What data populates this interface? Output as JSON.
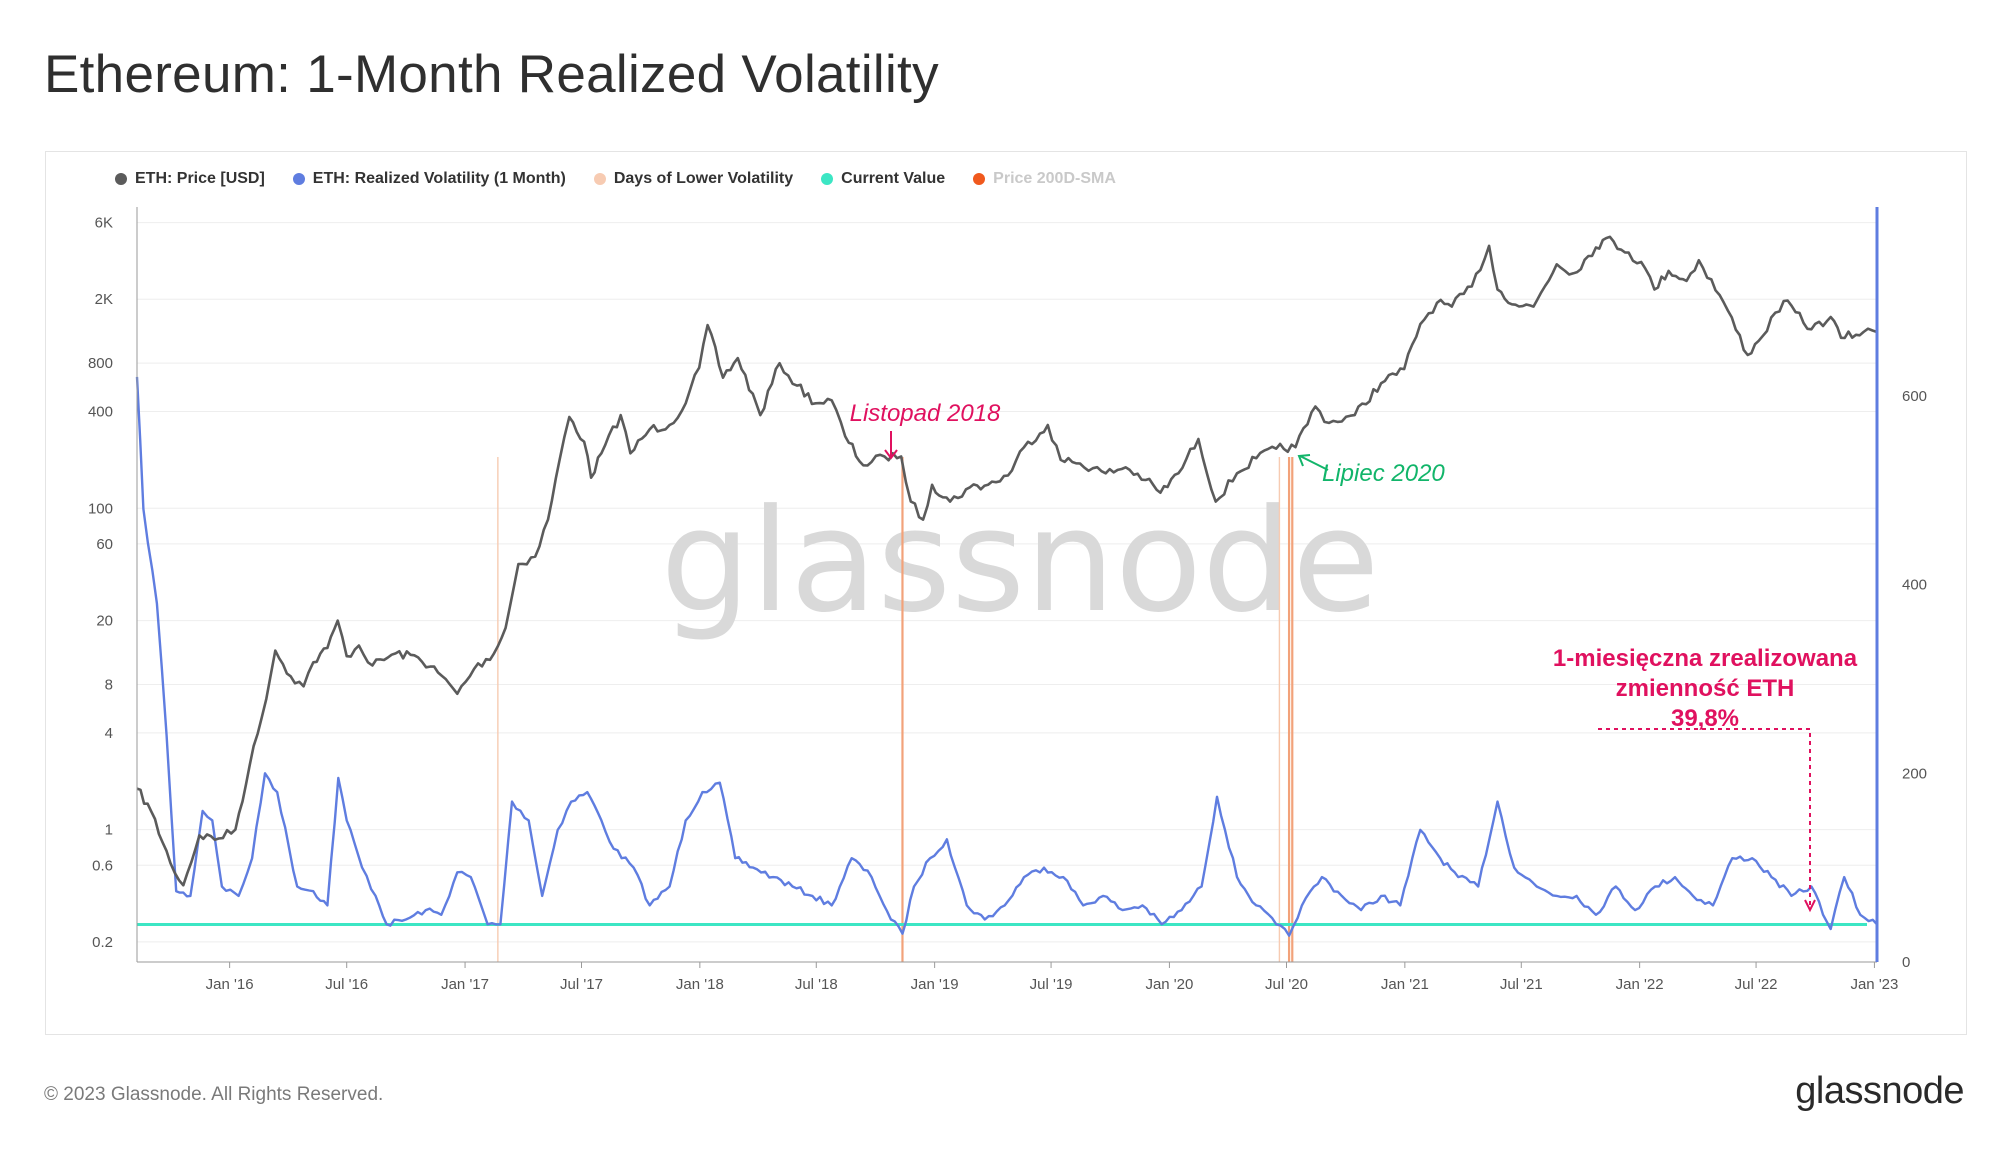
{
  "header": {
    "title": "Ethereum: 1-Month Realized Volatility"
  },
  "footer": {
    "copyright": "© 2023 Glassnode. All Rights Reserved.",
    "brand": "glassnode"
  },
  "watermark": "glassnode",
  "legend": [
    {
      "label": "ETH: Price [USD]",
      "color": "#5b5b5b",
      "muted": false
    },
    {
      "label": "ETH: Realized Volatility (1 Month)",
      "color": "#5f7de0",
      "muted": false
    },
    {
      "label": "Days of Lower Volatility",
      "color": "#f7cbb2",
      "muted": false
    },
    {
      "label": "Current Value",
      "color": "#3ce6c4",
      "muted": false
    },
    {
      "label": "Price 200D-SMA",
      "color": "#f0591d",
      "muted": true
    }
  ],
  "annotations": {
    "nov2018": {
      "text": "Listopad 2018",
      "color": "#e0115f"
    },
    "jul2020": {
      "text": "Lipiec 2020",
      "color": "#12b56a"
    },
    "current": {
      "lines": [
        "1-miesięczna zrealizowana",
        "zmienność ETH",
        "39,8%"
      ],
      "color": "#e0115f"
    }
  },
  "chart_data": {
    "type": "line",
    "x_tick_labels": [
      "Jan '16",
      "Jul '16",
      "Jan '17",
      "Jul '17",
      "Jan '18",
      "Jul '18",
      "Jan '19",
      "Jul '19",
      "Jan '20",
      "Jul '20",
      "Jan '21",
      "Jul '21",
      "Jan '22",
      "Jul '22",
      "Jan '23"
    ],
    "x_range": [
      "2015-08-10",
      "2023-01-05"
    ],
    "y_left": {
      "scale": "log",
      "ticks": [
        "6K",
        "2K",
        "800",
        "400",
        "100",
        "60",
        "20",
        "8",
        "4",
        "1",
        "0.6",
        "0.2"
      ],
      "tick_values": [
        6000,
        2000,
        800,
        400,
        100,
        60,
        20,
        8,
        4,
        1,
        0.6,
        0.2
      ],
      "range": [
        0.15,
        7500
      ]
    },
    "y_right": {
      "scale": "linear",
      "ticks": [
        "0",
        "200",
        "400",
        "600"
      ],
      "tick_values": [
        0,
        200,
        400,
        600
      ],
      "range": [
        0,
        800
      ]
    },
    "current_value": 39.8,
    "series": [
      {
        "name": "ETH: Price [USD]",
        "axis": "left",
        "color": "#5b5b5b",
        "points": [
          [
            "2015-08-10",
            1.8
          ],
          [
            "2015-09-01",
            1.3
          ],
          [
            "2015-10-01",
            0.62
          ],
          [
            "2015-10-21",
            0.45
          ],
          [
            "2015-11-15",
            0.92
          ],
          [
            "2015-12-15",
            0.88
          ],
          [
            "2016-01-10",
            1.0
          ],
          [
            "2016-02-01",
            2.5
          ],
          [
            "2016-02-20",
            5.0
          ],
          [
            "2016-03-12",
            13.0
          ],
          [
            "2016-04-05",
            9.0
          ],
          [
            "2016-04-25",
            7.8
          ],
          [
            "2016-05-10",
            11.0
          ],
          [
            "2016-06-01",
            13.5
          ],
          [
            "2016-06-17",
            20.0
          ],
          [
            "2016-07-01",
            12.0
          ],
          [
            "2016-07-20",
            14.0
          ],
          [
            "2016-08-10",
            10.5
          ],
          [
            "2016-09-15",
            12.5
          ],
          [
            "2016-10-20",
            11.8
          ],
          [
            "2016-11-20",
            9.5
          ],
          [
            "2016-12-20",
            7.0
          ],
          [
            "2017-01-15",
            10.0
          ],
          [
            "2017-02-15",
            12.5
          ],
          [
            "2017-03-05",
            18.0
          ],
          [
            "2017-03-25",
            45.0
          ],
          [
            "2017-04-20",
            50.0
          ],
          [
            "2017-05-10",
            85.0
          ],
          [
            "2017-05-28",
            200.0
          ],
          [
            "2017-06-12",
            370.0
          ],
          [
            "2017-07-05",
            260.0
          ],
          [
            "2017-07-16",
            155.0
          ],
          [
            "2017-08-01",
            220.0
          ],
          [
            "2017-08-31",
            380.0
          ],
          [
            "2017-09-15",
            220.0
          ],
          [
            "2017-10-15",
            310.0
          ],
          [
            "2017-11-15",
            330.0
          ],
          [
            "2017-12-10",
            450.0
          ],
          [
            "2017-12-31",
            750.0
          ],
          [
            "2018-01-13",
            1380.0
          ],
          [
            "2018-02-06",
            650.0
          ],
          [
            "2018-03-01",
            860.0
          ],
          [
            "2018-04-05",
            380.0
          ],
          [
            "2018-05-05",
            800.0
          ],
          [
            "2018-06-01",
            580.0
          ],
          [
            "2018-06-30",
            450.0
          ],
          [
            "2018-07-25",
            470.0
          ],
          [
            "2018-08-15",
            280.0
          ],
          [
            "2018-09-12",
            185.0
          ],
          [
            "2018-10-15",
            210.0
          ],
          [
            "2018-11-10",
            210.0
          ],
          [
            "2018-11-25",
            110.0
          ],
          [
            "2018-12-14",
            85.0
          ],
          [
            "2018-12-28",
            140.0
          ],
          [
            "2019-01-25",
            110.0
          ],
          [
            "2019-02-25",
            135.0
          ],
          [
            "2019-03-25",
            140.0
          ],
          [
            "2019-04-25",
            160.0
          ],
          [
            "2019-05-20",
            240.0
          ],
          [
            "2019-06-26",
            330.0
          ],
          [
            "2019-07-16",
            200.0
          ],
          [
            "2019-08-15",
            190.0
          ],
          [
            "2019-09-24",
            165.0
          ],
          [
            "2019-10-25",
            180.0
          ],
          [
            "2019-11-25",
            150.0
          ],
          [
            "2019-12-18",
            125.0
          ],
          [
            "2020-01-15",
            165.0
          ],
          [
            "2020-02-15",
            270.0
          ],
          [
            "2020-03-13",
            110.0
          ],
          [
            "2020-04-15",
            165.0
          ],
          [
            "2020-05-15",
            205.0
          ],
          [
            "2020-06-15",
            235.0
          ],
          [
            "2020-07-15",
            240.0
          ],
          [
            "2020-08-15",
            430.0
          ],
          [
            "2020-09-05",
            340.0
          ],
          [
            "2020-10-15",
            380.0
          ],
          [
            "2020-11-25",
            600.0
          ],
          [
            "2020-12-31",
            735.0
          ],
          [
            "2021-01-25",
            1400.0
          ],
          [
            "2021-02-20",
            1900.0
          ],
          [
            "2021-03-15",
            1800.0
          ],
          [
            "2021-04-15",
            2400.0
          ],
          [
            "2021-05-12",
            4300.0
          ],
          [
            "2021-05-25",
            2300.0
          ],
          [
            "2021-06-22",
            1850.0
          ],
          [
            "2021-07-20",
            1800.0
          ],
          [
            "2021-08-25",
            3300.0
          ],
          [
            "2021-09-20",
            2900.0
          ],
          [
            "2021-10-25",
            4200.0
          ],
          [
            "2021-11-10",
            4800.0
          ],
          [
            "2021-12-15",
            3900.0
          ],
          [
            "2022-01-10",
            3100.0
          ],
          [
            "2022-01-24",
            2300.0
          ],
          [
            "2022-02-15",
            3000.0
          ],
          [
            "2022-03-15",
            2600.0
          ],
          [
            "2022-04-03",
            3500.0
          ],
          [
            "2022-05-12",
            1900.0
          ],
          [
            "2022-06-18",
            900.0
          ],
          [
            "2022-07-05",
            1100.0
          ],
          [
            "2022-08-13",
            1950.0
          ],
          [
            "2022-09-25",
            1300.0
          ],
          [
            "2022-10-25",
            1550.0
          ],
          [
            "2022-11-10",
            1150.0
          ],
          [
            "2022-12-15",
            1250.0
          ],
          [
            "2023-01-05",
            1250.0
          ]
        ]
      },
      {
        "name": "ETH: Realized Volatility (1 Month)",
        "axis": "right",
        "color": "#5f7de0",
        "points": [
          [
            "2015-08-10",
            620
          ],
          [
            "2015-08-20",
            480
          ],
          [
            "2015-09-10",
            380
          ],
          [
            "2015-09-25",
            240
          ],
          [
            "2015-10-10",
            75
          ],
          [
            "2015-11-01",
            70
          ],
          [
            "2015-11-20",
            160
          ],
          [
            "2015-12-05",
            150
          ],
          [
            "2015-12-20",
            80
          ],
          [
            "2016-01-15",
            70
          ],
          [
            "2016-02-05",
            110
          ],
          [
            "2016-02-25",
            200
          ],
          [
            "2016-03-15",
            180
          ],
          [
            "2016-04-15",
            80
          ],
          [
            "2016-05-10",
            75
          ],
          [
            "2016-06-01",
            60
          ],
          [
            "2016-06-18",
            195
          ],
          [
            "2016-07-01",
            150
          ],
          [
            "2016-07-25",
            100
          ],
          [
            "2016-08-15",
            70
          ],
          [
            "2016-09-01",
            40
          ],
          [
            "2016-10-01",
            45
          ],
          [
            "2016-11-01",
            55
          ],
          [
            "2016-11-25",
            50
          ],
          [
            "2016-12-20",
            95
          ],
          [
            "2017-01-10",
            90
          ],
          [
            "2017-02-05",
            40
          ],
          [
            "2017-02-25",
            40
          ],
          [
            "2017-03-15",
            170
          ],
          [
            "2017-04-10",
            150
          ],
          [
            "2017-05-01",
            70
          ],
          [
            "2017-05-25",
            140
          ],
          [
            "2017-06-15",
            170
          ],
          [
            "2017-07-10",
            180
          ],
          [
            "2017-08-01",
            150
          ],
          [
            "2017-08-20",
            120
          ],
          [
            "2017-09-20",
            100
          ],
          [
            "2017-10-15",
            60
          ],
          [
            "2017-11-15",
            80
          ],
          [
            "2017-12-10",
            150
          ],
          [
            "2018-01-05",
            180
          ],
          [
            "2018-02-01",
            190
          ],
          [
            "2018-02-25",
            110
          ],
          [
            "2018-03-25",
            100
          ],
          [
            "2018-04-25",
            90
          ],
          [
            "2018-05-25",
            80
          ],
          [
            "2018-06-25",
            70
          ],
          [
            "2018-07-25",
            60
          ],
          [
            "2018-08-25",
            110
          ],
          [
            "2018-09-25",
            90
          ],
          [
            "2018-10-25",
            45
          ],
          [
            "2018-11-12",
            30
          ],
          [
            "2018-11-30",
            80
          ],
          [
            "2018-12-25",
            110
          ],
          [
            "2019-01-20",
            130
          ],
          [
            "2019-02-20",
            60
          ],
          [
            "2019-03-20",
            45
          ],
          [
            "2019-04-20",
            60
          ],
          [
            "2019-05-20",
            90
          ],
          [
            "2019-06-20",
            100
          ],
          [
            "2019-07-20",
            90
          ],
          [
            "2019-08-20",
            60
          ],
          [
            "2019-09-20",
            70
          ],
          [
            "2019-10-20",
            55
          ],
          [
            "2019-11-20",
            60
          ],
          [
            "2019-12-20",
            40
          ],
          [
            "2020-01-20",
            55
          ],
          [
            "2020-02-20",
            80
          ],
          [
            "2020-03-15",
            175
          ],
          [
            "2020-04-15",
            90
          ],
          [
            "2020-05-15",
            60
          ],
          [
            "2020-06-15",
            40
          ],
          [
            "2020-07-05",
            28
          ],
          [
            "2020-07-25",
            60
          ],
          [
            "2020-08-25",
            90
          ],
          [
            "2020-09-25",
            70
          ],
          [
            "2020-10-25",
            55
          ],
          [
            "2020-11-25",
            70
          ],
          [
            "2020-12-25",
            60
          ],
          [
            "2021-01-25",
            140
          ],
          [
            "2021-02-25",
            110
          ],
          [
            "2021-03-25",
            90
          ],
          [
            "2021-04-25",
            80
          ],
          [
            "2021-05-25",
            170
          ],
          [
            "2021-06-20",
            100
          ],
          [
            "2021-07-25",
            80
          ],
          [
            "2021-08-25",
            70
          ],
          [
            "2021-09-25",
            70
          ],
          [
            "2021-10-25",
            50
          ],
          [
            "2021-11-25",
            80
          ],
          [
            "2021-12-25",
            55
          ],
          [
            "2022-01-25",
            80
          ],
          [
            "2022-02-25",
            90
          ],
          [
            "2022-03-25",
            70
          ],
          [
            "2022-04-25",
            60
          ],
          [
            "2022-05-25",
            110
          ],
          [
            "2022-06-25",
            110
          ],
          [
            "2022-07-25",
            90
          ],
          [
            "2022-08-25",
            70
          ],
          [
            "2022-09-25",
            80
          ],
          [
            "2022-10-25",
            35
          ],
          [
            "2022-11-15",
            90
          ],
          [
            "2022-12-10",
            50
          ],
          [
            "2023-01-05",
            39.8
          ]
        ]
      }
    ],
    "lower_volatility_days": [
      {
        "date": "2017-02-21",
        "emphasis": "light"
      },
      {
        "date": "2018-11-12",
        "emphasis": "strong"
      },
      {
        "date": "2020-06-20",
        "emphasis": "light"
      },
      {
        "date": "2020-07-05",
        "emphasis": "strong"
      },
      {
        "date": "2020-07-10",
        "emphasis": "strong"
      }
    ]
  }
}
